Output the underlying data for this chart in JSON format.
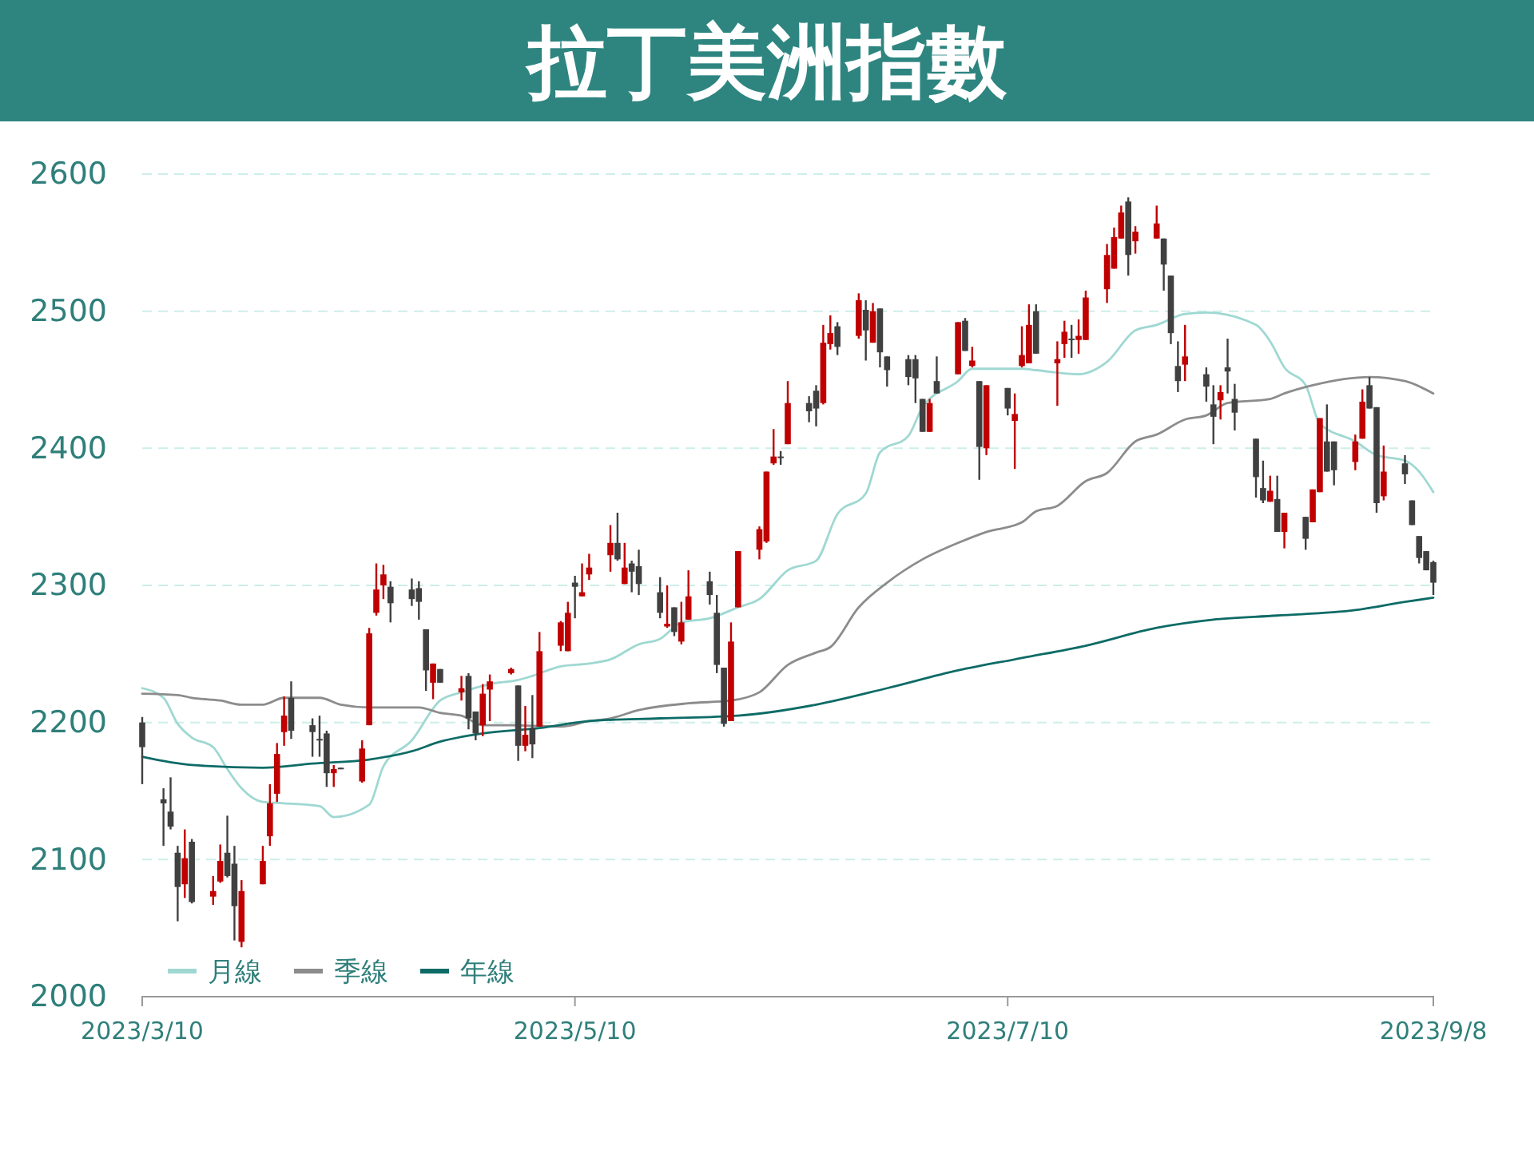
{
  "chart_data": {
    "type": "candlestick",
    "title": "拉丁美洲指數",
    "x": [
      "2023-03-10",
      "2023-03-13",
      "2023-03-14",
      "2023-03-15",
      "2023-03-16",
      "2023-03-17",
      "2023-03-20",
      "2023-03-21",
      "2023-03-22",
      "2023-03-23",
      "2023-03-24",
      "2023-03-27",
      "2023-03-28",
      "2023-03-29",
      "2023-03-30",
      "2023-03-31",
      "2023-04-03",
      "2023-04-04",
      "2023-04-05",
      "2023-04-06",
      "2023-04-07",
      "2023-04-10",
      "2023-04-11",
      "2023-04-12",
      "2023-04-13",
      "2023-04-14",
      "2023-04-17",
      "2023-04-18",
      "2023-04-19",
      "2023-04-20",
      "2023-04-21",
      "2023-04-24",
      "2023-04-25",
      "2023-04-26",
      "2023-04-27",
      "2023-04-28",
      "2023-05-01",
      "2023-05-02",
      "2023-05-03",
      "2023-05-04",
      "2023-05-05",
      "2023-05-08",
      "2023-05-09",
      "2023-05-10",
      "2023-05-11",
      "2023-05-12",
      "2023-05-15",
      "2023-05-16",
      "2023-05-17",
      "2023-05-18",
      "2023-05-19",
      "2023-05-22",
      "2023-05-23",
      "2023-05-24",
      "2023-05-25",
      "2023-05-26",
      "2023-05-29",
      "2023-05-30",
      "2023-05-31",
      "2023-06-01",
      "2023-06-02",
      "2023-06-05",
      "2023-06-06",
      "2023-06-07",
      "2023-06-08",
      "2023-06-09",
      "2023-06-12",
      "2023-06-13",
      "2023-06-14",
      "2023-06-15",
      "2023-06-16",
      "2023-06-19",
      "2023-06-20",
      "2023-06-21",
      "2023-06-22",
      "2023-06-23",
      "2023-06-26",
      "2023-06-27",
      "2023-06-28",
      "2023-06-29",
      "2023-06-30",
      "2023-07-03",
      "2023-07-04",
      "2023-07-05",
      "2023-07-06",
      "2023-07-07",
      "2023-07-10",
      "2023-07-11",
      "2023-07-12",
      "2023-07-13",
      "2023-07-14",
      "2023-07-17",
      "2023-07-18",
      "2023-07-19",
      "2023-07-20",
      "2023-07-21",
      "2023-07-24",
      "2023-07-25",
      "2023-07-26",
      "2023-07-27",
      "2023-07-28",
      "2023-07-31",
      "2023-08-01",
      "2023-08-02",
      "2023-08-03",
      "2023-08-04",
      "2023-08-07",
      "2023-08-08",
      "2023-08-09",
      "2023-08-10",
      "2023-08-11",
      "2023-08-14",
      "2023-08-15",
      "2023-08-16",
      "2023-08-17",
      "2023-08-18",
      "2023-08-21",
      "2023-08-22",
      "2023-08-23",
      "2023-08-24",
      "2023-08-25",
      "2023-08-28",
      "2023-08-29",
      "2023-08-30",
      "2023-08-31",
      "2023-09-01",
      "2023-09-04",
      "2023-09-05",
      "2023-09-06",
      "2023-09-07",
      "2023-09-08"
    ],
    "ohlc": [
      [
        2200,
        2204,
        2155,
        2182
      ],
      [
        2144,
        2152,
        2110,
        2141
      ],
      [
        2135,
        2160,
        2122,
        2124
      ],
      [
        2105,
        2110,
        2055,
        2080
      ],
      [
        2082,
        2122,
        2072,
        2101
      ],
      [
        2113,
        2115,
        2068,
        2069
      ],
      [
        2073,
        2088,
        2067,
        2077
      ],
      [
        2084,
        2111,
        2083,
        2099
      ],
      [
        2105,
        2132,
        2087,
        2088
      ],
      [
        2097,
        2110,
        2041,
        2066
      ],
      [
        2040,
        2085,
        2036,
        2077
      ],
      [
        2082,
        2110,
        2082,
        2099
      ],
      [
        2117,
        2155,
        2110,
        2141
      ],
      [
        2148,
        2185,
        2142,
        2177
      ],
      [
        2193,
        2219,
        2183,
        2205
      ],
      [
        2218,
        2230,
        2188,
        2194
      ],
      [
        2198,
        2203,
        2175,
        2193
      ],
      [
        2188,
        2205,
        2175,
        2187
      ],
      [
        2192,
        2194,
        2153,
        2163
      ],
      [
        2163,
        2169,
        2153,
        2166
      ],
      [
        2167,
        2167,
        2166,
        2166
      ],
      [
        2157,
        2187,
        2156,
        2181
      ],
      [
        2198,
        2269,
        2198,
        2265
      ],
      [
        2280,
        2316,
        2278,
        2297
      ],
      [
        2300,
        2315,
        2290,
        2308
      ],
      [
        2299,
        2303,
        2273,
        2287
      ],
      [
        2297,
        2305,
        2285,
        2290
      ],
      [
        2298,
        2303,
        2275,
        2288
      ],
      [
        2268,
        2268,
        2223,
        2238
      ],
      [
        2229,
        2243,
        2217,
        2243
      ],
      [
        2239,
        2239,
        2229,
        2229
      ],
      [
        2222,
        2234,
        2216,
        2225
      ],
      [
        2234,
        2236,
        2195,
        2203
      ],
      [
        2208,
        2208,
        2187,
        2192
      ],
      [
        2198,
        2228,
        2190,
        2221
      ],
      [
        2224,
        2235,
        2201,
        2230
      ],
      [
        2236,
        2240,
        2235,
        2239
      ],
      [
        2227,
        2227,
        2172,
        2183
      ],
      [
        2183,
        2212,
        2179,
        2191
      ],
      [
        2196,
        2220,
        2174,
        2184
      ],
      [
        2197,
        2266,
        2197,
        2252
      ],
      [
        2256,
        2274,
        2252,
        2273
      ],
      [
        2252,
        2288,
        2252,
        2280
      ],
      [
        2302,
        2307,
        2276,
        2299
      ],
      [
        2292,
        2316,
        2292,
        2295
      ],
      [
        2308,
        2323,
        2304,
        2313
      ],
      [
        2322,
        2344,
        2310,
        2331
      ],
      [
        2331,
        2353,
        2318,
        2319
      ],
      [
        2301,
        2331,
        2301,
        2313
      ],
      [
        2316,
        2318,
        2295,
        2310
      ],
      [
        2314,
        2326,
        2293,
        2301
      ],
      [
        2295,
        2306,
        2276,
        2280
      ],
      [
        2270,
        2300,
        2269,
        2272
      ],
      [
        2284,
        2284,
        2263,
        2266
      ],
      [
        2259,
        2288,
        2257,
        2273
      ],
      [
        2275,
        2311,
        2275,
        2292
      ],
      [
        2303,
        2310,
        2286,
        2293
      ],
      [
        2280,
        2293,
        2236,
        2242
      ],
      [
        2240,
        2240,
        2197,
        2199
      ],
      [
        2201,
        2273,
        2201,
        2259
      ],
      [
        2284,
        2325,
        2284,
        2325
      ],
      [
        2326,
        2343,
        2319,
        2341
      ],
      [
        2332,
        2383,
        2331,
        2383
      ],
      [
        2389,
        2414,
        2388,
        2394
      ],
      [
        2394,
        2398,
        2388,
        2393
      ],
      [
        2403,
        2449,
        2403,
        2433
      ],
      [
        2433,
        2438,
        2419,
        2427
      ],
      [
        2442,
        2446,
        2416,
        2429
      ],
      [
        2433,
        2490,
        2432,
        2477
      ],
      [
        2476,
        2497,
        2472,
        2484
      ],
      [
        2489,
        2492,
        2468,
        2474
      ],
      [
        2482,
        2513,
        2480,
        2508
      ],
      [
        2501,
        2508,
        2464,
        2486
      ],
      [
        2477,
        2506,
        2477,
        2500
      ],
      [
        2502,
        2502,
        2459,
        2470
      ],
      [
        2467,
        2467,
        2445,
        2457
      ],
      [
        2465,
        2468,
        2446,
        2452
      ],
      [
        2465,
        2468,
        2433,
        2451
      ],
      [
        2436,
        2436,
        2412,
        2412
      ],
      [
        2412,
        2436,
        2412,
        2433
      ],
      [
        2449,
        2467,
        2440,
        2440
      ],
      [
        2454,
        2492,
        2454,
        2492
      ],
      [
        2493,
        2495,
        2471,
        2471
      ],
      [
        2460,
        2474,
        2459,
        2464
      ],
      [
        2449,
        2449,
        2377,
        2401
      ],
      [
        2400,
        2446,
        2395,
        2446
      ],
      [
        2444,
        2444,
        2424,
        2429
      ],
      [
        2420,
        2440,
        2385,
        2425
      ],
      [
        2460,
        2489,
        2459,
        2468
      ],
      [
        2462,
        2505,
        2462,
        2490
      ],
      [
        2500,
        2505,
        2469,
        2469
      ],
      [
        2462,
        2478,
        2431,
        2465
      ],
      [
        2476,
        2493,
        2466,
        2485
      ],
      [
        2480,
        2490,
        2466,
        2479
      ],
      [
        2479,
        2494,
        2469,
        2482
      ],
      [
        2479,
        2515,
        2479,
        2510
      ],
      [
        2516,
        2549,
        2506,
        2541
      ],
      [
        2531,
        2561,
        2531,
        2554
      ],
      [
        2553,
        2577,
        2553,
        2572
      ],
      [
        2580,
        2583,
        2526,
        2541
      ],
      [
        2551,
        2562,
        2542,
        2558
      ],
      [
        2553,
        2577,
        2553,
        2564
      ],
      [
        2553,
        2553,
        2515,
        2534
      ],
      [
        2526,
        2526,
        2476,
        2484
      ],
      [
        2460,
        2478,
        2441,
        2449
      ],
      [
        2461,
        2490,
        2449,
        2467
      ],
      [
        2454,
        2459,
        2434,
        2445
      ],
      [
        2432,
        2446,
        2403,
        2423
      ],
      [
        2435,
        2446,
        2421,
        2441
      ],
      [
        2459,
        2480,
        2440,
        2456
      ],
      [
        2436,
        2447,
        2413,
        2426
      ],
      [
        2407,
        2407,
        2364,
        2379
      ],
      [
        2371,
        2391,
        2360,
        2362
      ],
      [
        2361,
        2380,
        2361,
        2369
      ],
      [
        2363,
        2380,
        2339,
        2339
      ],
      [
        2339,
        2353,
        2327,
        2353
      ],
      [
        2350,
        2350,
        2326,
        2334
      ],
      [
        2346,
        2370,
        2346,
        2370
      ],
      [
        2368,
        2422,
        2368,
        2422
      ],
      [
        2405,
        2432,
        2383,
        2383
      ],
      [
        2405,
        2405,
        2373,
        2384
      ],
      [
        2390,
        2410,
        2384,
        2405
      ],
      [
        2407,
        2443,
        2407,
        2434
      ],
      [
        2446,
        2452,
        2429,
        2429
      ],
      [
        2430,
        2430,
        2353,
        2360
      ],
      [
        2365,
        2402,
        2362,
        2383
      ],
      [
        2389,
        2395,
        2374,
        2381
      ],
      [
        2362,
        2362,
        2344,
        2344
      ],
      [
        2336,
        2336,
        2316,
        2320
      ],
      [
        2325,
        2325,
        2311,
        2311
      ],
      [
        2317,
        2318,
        2293,
        2302
      ]
    ],
    "colors": [
      "#404040",
      "#404040",
      "#404040",
      "#404040",
      "#c00000",
      "#404040",
      "#c00000",
      "#c00000",
      "#404040",
      "#404040",
      "#c00000",
      "#c00000",
      "#c00000",
      "#c00000",
      "#c00000",
      "#404040",
      "#404040",
      "#404040",
      "#404040",
      "#c00000",
      "#404040",
      "#c00000",
      "#c00000",
      "#c00000",
      "#c00000",
      "#404040",
      "#404040",
      "#404040",
      "#404040",
      "#c00000",
      "#404040",
      "#c00000",
      "#404040",
      "#404040",
      "#c00000",
      "#c00000",
      "#c00000",
      "#404040",
      "#c00000",
      "#404040",
      "#c00000",
      "#c00000",
      "#c00000",
      "#404040",
      "#c00000",
      "#c00000",
      "#c00000",
      "#404040",
      "#c00000",
      "#404040",
      "#404040",
      "#404040",
      "#c00000",
      "#404040",
      "#c00000",
      "#c00000",
      "#404040",
      "#404040",
      "#404040",
      "#c00000",
      "#c00000",
      "#c00000",
      "#c00000",
      "#c00000",
      "#404040",
      "#c00000",
      "#404040",
      "#404040",
      "#c00000",
      "#c00000",
      "#404040",
      "#c00000",
      "#404040",
      "#c00000",
      "#404040",
      "#404040",
      "#404040",
      "#404040",
      "#404040",
      "#c00000",
      "#404040",
      "#c00000",
      "#404040",
      "#c00000",
      "#404040",
      "#c00000",
      "#404040",
      "#c00000",
      "#c00000",
      "#c00000",
      "#404040",
      "#c00000",
      "#c00000",
      "#404040",
      "#c00000",
      "#c00000",
      "#c00000",
      "#c00000",
      "#c00000",
      "#404040",
      "#c00000",
      "#c00000",
      "#404040",
      "#404040",
      "#404040",
      "#c00000",
      "#404040",
      "#404040",
      "#c00000",
      "#404040",
      "#404040",
      "#404040",
      "#404040",
      "#c00000",
      "#404040",
      "#c00000",
      "#404040",
      "#c00000",
      "#c00000",
      "#404040",
      "#404040",
      "#c00000",
      "#c00000",
      "#404040",
      "#404040",
      "#c00000",
      "#404040",
      "#404040",
      "#404040",
      "#404040",
      "#404040"
    ],
    "series": [
      {
        "type": "line",
        "name": "月線",
        "color": "#9fd8d2",
        "x": [
          "2023-03-10",
          "2023-03-13",
          "2023-03-15",
          "2023-03-17",
          "2023-03-20",
          "2023-03-22",
          "2023-03-24",
          "2023-03-27",
          "2023-03-30",
          "2023-04-04",
          "2023-04-06",
          "2023-04-11",
          "2023-04-13",
          "2023-04-17",
          "2023-04-21",
          "2023-04-24",
          "2023-04-28",
          "2023-05-02",
          "2023-05-04",
          "2023-05-08",
          "2023-05-12",
          "2023-05-15",
          "2023-05-19",
          "2023-05-22",
          "2023-05-25",
          "2023-05-29",
          "2023-06-02",
          "2023-06-05",
          "2023-06-09",
          "2023-06-13",
          "2023-06-16",
          "2023-06-20",
          "2023-06-22",
          "2023-06-26",
          "2023-06-28",
          "2023-07-03",
          "2023-07-05",
          "2023-07-12",
          "2023-07-14",
          "2023-07-20",
          "2023-07-24",
          "2023-07-28",
          "2023-07-31",
          "2023-08-04",
          "2023-08-07",
          "2023-08-14",
          "2023-08-16",
          "2023-08-18",
          "2023-08-21",
          "2023-08-23",
          "2023-08-28",
          "2023-08-31",
          "2023-09-04",
          "2023-09-06",
          "2023-09-08"
        ],
        "values": [
          2225,
          2218,
          2199,
          2189,
          2182,
          2166,
          2152,
          2142,
          2141,
          2139,
          2131,
          2140,
          2168,
          2187,
          2216,
          2222,
          2228,
          2231,
          2234,
          2241,
          2243,
          2246,
          2257,
          2261,
          2273,
          2276,
          2284,
          2290,
          2311,
          2318,
          2352,
          2367,
          2397,
          2409,
          2430,
          2449,
          2458,
          2458,
          2457,
          2454,
          2463,
          2486,
          2490,
          2498,
          2499,
          2490,
          2478,
          2459,
          2446,
          2418,
          2405,
          2395,
          2391,
          2383,
          2368
        ]
      },
      {
        "type": "line",
        "name": "季線",
        "color": "#8c8c8c",
        "x": [
          "2023-03-10",
          "2023-03-15",
          "2023-03-17",
          "2023-03-21",
          "2023-03-24",
          "2023-03-27",
          "2023-03-30",
          "2023-04-04",
          "2023-04-07",
          "2023-04-11",
          "2023-04-18",
          "2023-04-21",
          "2023-04-24",
          "2023-04-27",
          "2023-05-01",
          "2023-05-08",
          "2023-05-12",
          "2023-05-15",
          "2023-05-19",
          "2023-05-26",
          "2023-06-01",
          "2023-06-05",
          "2023-06-09",
          "2023-06-13",
          "2023-06-15",
          "2023-06-19",
          "2023-06-23",
          "2023-06-28",
          "2023-07-03",
          "2023-07-07",
          "2023-07-12",
          "2023-07-14",
          "2023-07-17",
          "2023-07-21",
          "2023-07-24",
          "2023-07-28",
          "2023-07-31",
          "2023-08-04",
          "2023-08-07",
          "2023-08-10",
          "2023-08-16",
          "2023-08-18",
          "2023-08-22",
          "2023-08-30",
          "2023-09-04",
          "2023-09-08"
        ],
        "values": [
          2221,
          2220,
          2218,
          2216,
          2213,
          2213,
          2218,
          2218,
          2213,
          2211,
          2211,
          2207,
          2205,
          2198,
          2198,
          2197,
          2201,
          2203,
          2209,
          2214,
          2216,
          2222,
          2242,
          2251,
          2255,
          2284,
          2302,
          2319,
          2331,
          2339,
          2346,
          2354,
          2358,
          2376,
          2382,
          2405,
          2410,
          2421,
          2424,
          2433,
          2436,
          2440,
          2446,
          2452,
          2449,
          2440
        ]
      },
      {
        "type": "line",
        "name": "年線",
        "color": "#0d6b66",
        "x": [
          "2023-03-10",
          "2023-03-17",
          "2023-03-27",
          "2023-04-03",
          "2023-04-11",
          "2023-04-17",
          "2023-04-21",
          "2023-04-27",
          "2023-05-05",
          "2023-05-12",
          "2023-05-22",
          "2023-06-02",
          "2023-06-13",
          "2023-06-23",
          "2023-07-03",
          "2023-07-12",
          "2023-07-21",
          "2023-07-31",
          "2023-08-08",
          "2023-08-17",
          "2023-08-28",
          "2023-09-04",
          "2023-09-08"
        ],
        "values": [
          2175,
          2169,
          2167,
          2170,
          2173,
          2179,
          2186,
          2192,
          2196,
          2201,
          2203,
          2205,
          2213,
          2225,
          2238,
          2247,
          2256,
          2269,
          2275,
          2278,
          2282,
          2288,
          2291
        ]
      }
    ],
    "xlim": [
      "2023-03-10",
      "2023-09-08"
    ],
    "xticks": [
      {
        "value": "2023-03-10",
        "label": "2023/3/10"
      },
      {
        "value": "2023-05-10",
        "label": "2023/5/10"
      },
      {
        "value": "2023-07-10",
        "label": "2023/7/10"
      },
      {
        "value": "2023-09-08",
        "label": "2023/9/8"
      }
    ],
    "ylim": [
      2000,
      2600
    ],
    "yticks": [
      2000,
      2100,
      2200,
      2300,
      2400,
      2500,
      2600
    ],
    "grid": "y",
    "legend": "bottom left"
  }
}
